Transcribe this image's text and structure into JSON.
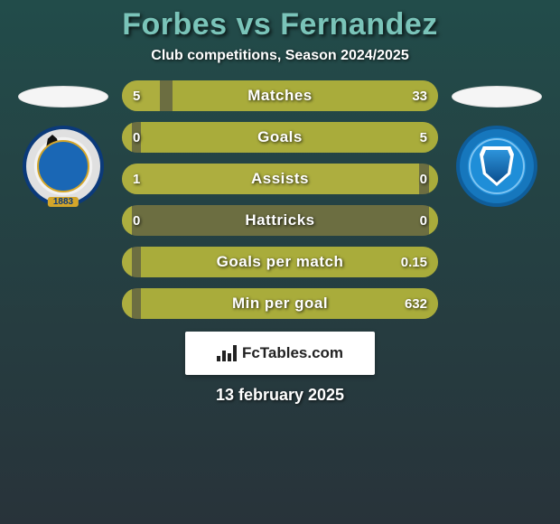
{
  "colors": {
    "bg_top": "#224c4a",
    "bg_bottom": "#28333a",
    "title": "#7ac4b9",
    "text": "#ffffff",
    "bar_track": "#6c6e41",
    "fill_left": "#adae3f",
    "fill_right": "#a9ac3b",
    "footer_card": "#ffffff"
  },
  "title": "Forbes vs Fernandez",
  "subtitle": "Club competitions, Season 2024/2025",
  "leftCrest": {
    "year": "1883"
  },
  "bars": {
    "track_height": 34,
    "border_radius": 17,
    "rows": [
      {
        "label": "Matches",
        "left": "5",
        "right": "33",
        "left_pct": 12,
        "right_pct": 84
      },
      {
        "label": "Goals",
        "left": "0",
        "right": "5",
        "left_pct": 3,
        "right_pct": 94
      },
      {
        "label": "Assists",
        "left": "1",
        "right": "0",
        "left_pct": 94,
        "right_pct": 3
      },
      {
        "label": "Hattricks",
        "left": "0",
        "right": "0",
        "left_pct": 3,
        "right_pct": 3
      },
      {
        "label": "Goals per match",
        "left": "",
        "right": "0.15",
        "left_pct": 3,
        "right_pct": 94
      },
      {
        "label": "Min per goal",
        "left": "",
        "right": "632",
        "left_pct": 3,
        "right_pct": 94
      }
    ]
  },
  "footer": {
    "brand_icon_heights": [
      6,
      12,
      9,
      18
    ],
    "brand": "FcTables.com",
    "date": "13 february 2025"
  }
}
